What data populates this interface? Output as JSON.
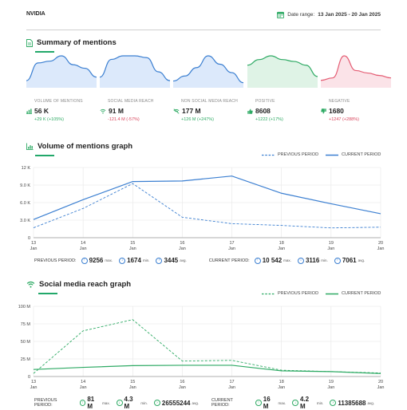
{
  "header": {
    "brand": "NVIDIA",
    "date_label": "Date range:",
    "date_value": "13 Jan 2025 - 20 Jan 2025"
  },
  "summary": {
    "title": "Summary of mentions",
    "metrics": [
      {
        "label": "VOLUME OF MENTIONS",
        "value": "56 K",
        "change": "+29 K (+105%)",
        "tone": "pos",
        "icon": "bar-chart-icon"
      },
      {
        "label": "SOCIAL MEDIA REACH",
        "value": "91 M",
        "change": "-121.4 M (-57%)",
        "tone": "neg",
        "icon": "wifi-icon"
      },
      {
        "label": "NON SOCIAL MEDIA REACH",
        "value": "177 M",
        "change": "+126 M (+247%)",
        "tone": "pos",
        "icon": "wifi-off-icon"
      },
      {
        "label": "POSITIVE",
        "value": "8608",
        "change": "+1222 (+17%)",
        "tone": "pos",
        "icon": "thumbs-up-icon"
      },
      {
        "label": "NEGATIVE",
        "value": "1680",
        "change": "+1247 (+288%)",
        "tone": "neg",
        "icon": "thumbs-down-icon"
      }
    ]
  },
  "colors": {
    "blue": "#3b7fd1",
    "blue_fill": "#dce9fb",
    "green": "#2eaa64",
    "green_fill": "#dff3e6",
    "red": "#e45c73",
    "red_fill": "#fbe3e8"
  },
  "volume_graph": {
    "title": "Volume of mentions graph",
    "legend_prev": "PREVIOUS PERIOD",
    "legend_curr": "CURRENT PERIOD",
    "stats_prev_label": "PREVIOUS PERIOD:",
    "stats_curr_label": "CURRENT PERIOD:",
    "prev_max": "9256",
    "prev_min": "1674",
    "prev_avg": "3445",
    "curr_max": "10 542",
    "curr_min": "3116",
    "curr_avg": "7061",
    "unit_max": "max.",
    "unit_min": "min.",
    "unit_avg": "avg."
  },
  "reach_graph": {
    "title": "Social media reach graph",
    "legend_prev": "PREVIOUS PERIOD",
    "legend_curr": "CURRENT PERIOD",
    "stats_prev_label": "PREVIOUS PERIOD:",
    "stats_curr_label": "CURRENT PERIOD:",
    "prev_max": "81 M",
    "prev_min": "4.3 M",
    "prev_avg": "26555244",
    "curr_max": "16 M",
    "curr_min": "4.2 M",
    "curr_avg": "11385688",
    "unit_max": "max.",
    "unit_min": "min.",
    "unit_avg": "avg."
  },
  "chart_data": [
    {
      "type": "line",
      "x": [
        "13",
        "14",
        "15",
        "16",
        "17",
        "18",
        "19",
        "20"
      ],
      "x_sublabel": "Jan",
      "series": [
        {
          "name": "PREVIOUS PERIOD",
          "values": [
            1700,
            5000,
            9256,
            3500,
            2400,
            2100,
            1674,
            1800
          ]
        },
        {
          "name": "CURRENT PERIOD",
          "values": [
            3116,
            6500,
            9600,
            9700,
            10542,
            7600,
            5800,
            4100
          ]
        }
      ],
      "yticks": [
        "0",
        "3.0 K",
        "6.0 K",
        "9.0 K",
        "12 K"
      ],
      "ylim": [
        0,
        12000
      ]
    },
    {
      "type": "line",
      "x": [
        "13",
        "14",
        "15",
        "16",
        "17",
        "18",
        "19",
        "20"
      ],
      "x_sublabel": "Jan",
      "series": [
        {
          "name": "PREVIOUS PERIOD",
          "values": [
            4.3,
            65,
            81,
            22,
            23,
            9,
            7,
            5
          ]
        },
        {
          "name": "CURRENT PERIOD",
          "values": [
            10,
            13,
            15.5,
            16,
            16,
            8,
            7,
            4.2
          ]
        }
      ],
      "yticks": [
        "0",
        "25 M",
        "50 M",
        "75 M",
        "100 M"
      ],
      "ylim": [
        0,
        100
      ]
    }
  ],
  "sparklines": [
    {
      "color_key": "blue",
      "values": [
        2,
        7,
        7.5,
        9,
        6.5,
        5.5,
        3
      ]
    },
    {
      "color_key": "blue",
      "values": [
        3,
        8,
        9,
        9,
        8.5,
        4.5,
        2
      ]
    },
    {
      "color_key": "blue",
      "values": [
        2,
        3.5,
        6,
        9.5,
        7,
        4.5,
        1.5
      ]
    },
    {
      "color_key": "green",
      "values": [
        6,
        7.5,
        8.5,
        7.5,
        7,
        6,
        3
      ]
    },
    {
      "color_key": "red",
      "values": [
        1.5,
        2,
        6.5,
        3.5,
        3,
        2.5,
        2
      ]
    }
  ]
}
